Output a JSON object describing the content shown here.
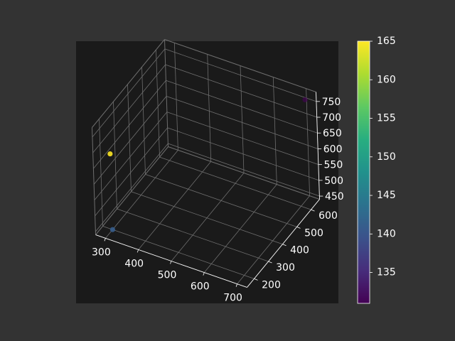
{
  "chart_data": {
    "type": "scatter",
    "title": "",
    "xlabel": "",
    "ylabel": "",
    "zlabel": "",
    "grid": true,
    "x_ticks": [
      300,
      400,
      500,
      600,
      700
    ],
    "y_ticks": [
      200,
      300,
      400,
      500,
      600
    ],
    "z_ticks": [
      450,
      500,
      550,
      600,
      650,
      700,
      750
    ],
    "xlim": [
      270,
      730
    ],
    "ylim": [
      150,
      660
    ],
    "zlim": [
      440,
      780
    ],
    "points": [
      {
        "x": 300,
        "y": 200,
        "z": 440,
        "c": 141
      },
      {
        "x": 300,
        "y": 200,
        "z": 680,
        "c": 165
      },
      {
        "x": 700,
        "y": 650,
        "z": 750,
        "c": 131
      }
    ],
    "colorbar": {
      "colormap": "viridis",
      "min": 131,
      "max": 165,
      "ticks": [
        135,
        140,
        145,
        150,
        155,
        160,
        165
      ]
    },
    "colors": {
      "figure_bg": "#333333",
      "axes_bg": "#1a1a1a",
      "text": "#ffffff",
      "grid": "#6e6e6e"
    }
  }
}
